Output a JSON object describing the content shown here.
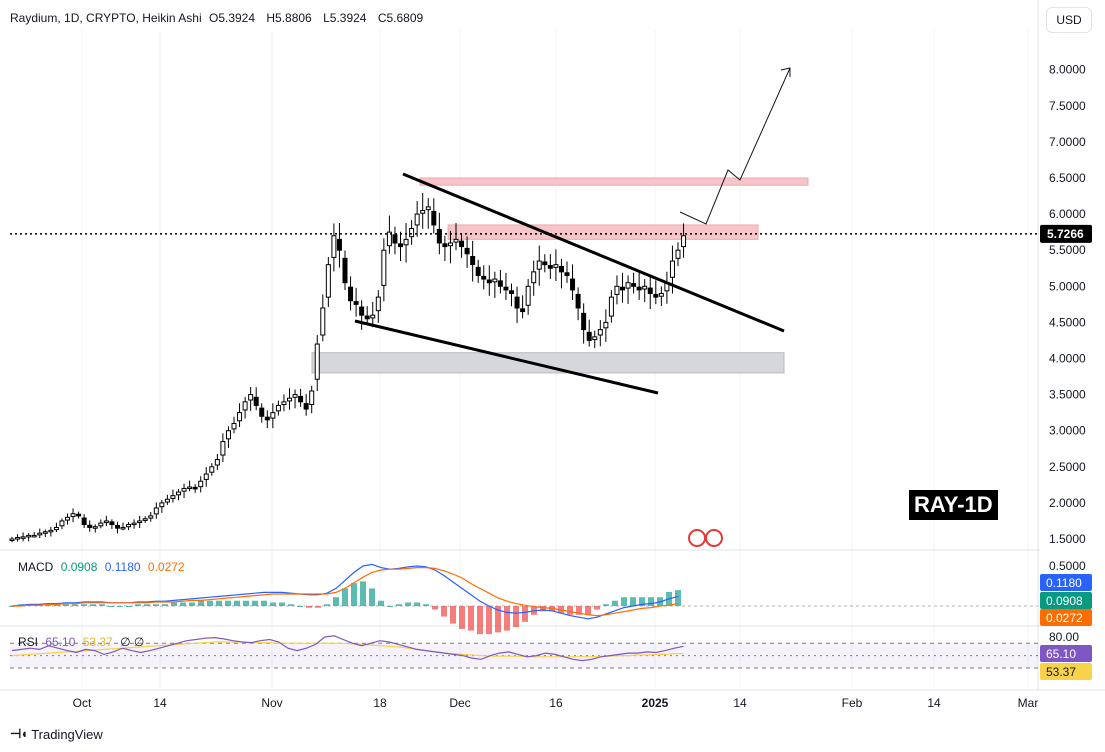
{
  "header": {
    "symbol": "Raydium, 1D, CRYPTO, Heikin Ashi",
    "o_label": "O",
    "o_value": "5.3924",
    "h_label": "H",
    "h_value": "5.8806",
    "l_label": "L",
    "l_value": "5.3924",
    "c_label": "C",
    "c_value": "5.6809",
    "currency_button": "USD"
  },
  "watermark_label": "RAY-1D",
  "branding": "TradingView",
  "colors": {
    "up": "#000000",
    "down": "#000000",
    "macd_line": "#2962ff",
    "signal_line": "#ff6d00",
    "rsi_line": "#7e57c2",
    "rsi_ma": "#f7d24a",
    "resistance_zone": "#f6c5c9",
    "support_zone": "#d6d7da",
    "macd_hist_pos": "#26a69a",
    "macd_hist_neg": "#ef5350"
  },
  "chart_data": [
    {
      "type": "candlestick",
      "title": "Raydium, 1D, CRYPTO, Heikin Ashi",
      "x_axis_ticks": [
        "Oct",
        "14",
        "Nov",
        "18",
        "Dec",
        "16",
        "2025",
        "14",
        "Feb",
        "14",
        "Mar"
      ],
      "y_axis_ticks": [
        "1.5000",
        "2.0000",
        "2.5000",
        "3.0000",
        "3.5000",
        "4.0000",
        "4.5000",
        "5.0000",
        "5.5000",
        "6.0000",
        "6.5000",
        "7.0000",
        "7.5000",
        "8.0000"
      ],
      "ylim": [
        1.3,
        8.5
      ],
      "current_price_label": "5.7266",
      "current_price": 5.7266,
      "closes": [
        1.5,
        1.52,
        1.53,
        1.55,
        1.55,
        1.58,
        1.6,
        1.62,
        1.66,
        1.75,
        1.8,
        1.85,
        1.82,
        1.7,
        1.66,
        1.67,
        1.72,
        1.75,
        1.7,
        1.65,
        1.66,
        1.7,
        1.72,
        1.75,
        1.78,
        1.82,
        1.93,
        2.0,
        2.05,
        2.1,
        2.15,
        2.2,
        2.22,
        2.2,
        2.3,
        2.4,
        2.5,
        2.6,
        2.85,
        3.0,
        3.1,
        3.25,
        3.4,
        3.5,
        3.35,
        3.2,
        3.15,
        3.25,
        3.35,
        3.4,
        3.45,
        3.5,
        3.4,
        3.3,
        3.55,
        4.2,
        4.7,
        5.3,
        5.7,
        5.5,
        5.05,
        4.8,
        4.75,
        4.6,
        4.55,
        4.6,
        4.85,
        5.5,
        5.75,
        5.6,
        5.55,
        5.65,
        5.8,
        6.0,
        6.05,
        6.1,
        5.85,
        5.6,
        5.55,
        5.6,
        5.65,
        5.55,
        5.45,
        5.3,
        5.15,
        5.1,
        5.05,
        5.1,
        5.0,
        4.95,
        4.9,
        4.7,
        4.65,
        5.0,
        5.2,
        5.35,
        5.3,
        5.25,
        5.3,
        5.2,
        5.15,
        4.95,
        4.7,
        4.4,
        4.25,
        4.3,
        4.4,
        4.5,
        4.85,
        5.0,
        4.95,
        5.05,
        5.0,
        4.95,
        5.0,
        4.9,
        4.85,
        4.9,
        5.05,
        5.35,
        5.5,
        5.7
      ],
      "annotations": {
        "resistance_zones": [
          [
            6.4,
            6.5
          ],
          [
            5.65,
            5.85
          ]
        ],
        "support_zone": [
          3.8,
          4.08
        ],
        "falling_wedge_upper": [
          [
            6.58,
            4.4
          ]
        ],
        "falling_wedge_lower": [
          [
            4.5,
            3.55
          ]
        ],
        "projection_path": [
          5.85,
          6.6,
          8.05
        ]
      }
    },
    {
      "type": "line",
      "title": "MACD",
      "values_labels": [
        "0.0908",
        "0.1180",
        "0.0272"
      ],
      "y_axis_ticks": [
        "0.5000"
      ],
      "series": [
        {
          "name": "MACD",
          "color": "#2962ff"
        },
        {
          "name": "Signal",
          "color": "#ff6d00"
        },
        {
          "name": "Histogram"
        }
      ],
      "macd": [
        0.0,
        0.01,
        0.02,
        0.02,
        0.03,
        0.03,
        0.04,
        0.04,
        0.05,
        0.05,
        0.05,
        0.04,
        0.04,
        0.04,
        0.05,
        0.05,
        0.06,
        0.06,
        0.07,
        0.08,
        0.09,
        0.1,
        0.11,
        0.12,
        0.13,
        0.14,
        0.15,
        0.16,
        0.17,
        0.17,
        0.17,
        0.16,
        0.15,
        0.14,
        0.14,
        0.16,
        0.22,
        0.32,
        0.42,
        0.5,
        0.52,
        0.48,
        0.46,
        0.47,
        0.49,
        0.5,
        0.49,
        0.45,
        0.38,
        0.3,
        0.22,
        0.14,
        0.06,
        0.0,
        -0.05,
        -0.08,
        -0.09,
        -0.08,
        -0.06,
        -0.05,
        -0.06,
        -0.09,
        -0.12,
        -0.14,
        -0.16,
        -0.14,
        -0.1,
        -0.06,
        -0.02,
        0.0,
        0.02,
        0.03,
        0.05,
        0.09,
        0.12
      ],
      "signal": [
        0.0,
        0.0,
        0.01,
        0.01,
        0.02,
        0.02,
        0.03,
        0.03,
        0.04,
        0.04,
        0.04,
        0.04,
        0.04,
        0.04,
        0.04,
        0.04,
        0.05,
        0.05,
        0.05,
        0.06,
        0.07,
        0.07,
        0.08,
        0.09,
        0.1,
        0.11,
        0.12,
        0.13,
        0.14,
        0.15,
        0.15,
        0.15,
        0.15,
        0.15,
        0.15,
        0.15,
        0.17,
        0.22,
        0.29,
        0.36,
        0.42,
        0.45,
        0.46,
        0.46,
        0.47,
        0.48,
        0.48,
        0.47,
        0.44,
        0.4,
        0.35,
        0.28,
        0.22,
        0.16,
        0.1,
        0.06,
        0.03,
        0.01,
        -0.01,
        -0.02,
        -0.03,
        -0.05,
        -0.07,
        -0.09,
        -0.11,
        -0.12,
        -0.11,
        -0.09,
        -0.07,
        -0.05,
        -0.03,
        -0.02,
        0.0,
        0.01,
        0.03
      ]
    },
    {
      "type": "line",
      "title": "RSI",
      "values_labels": [
        "65.10",
        "53.37"
      ],
      "y_axis_ticks": [
        "80.00"
      ],
      "levels": [
        70,
        30
      ],
      "rsi": [
        58,
        60,
        62,
        60,
        66,
        62,
        58,
        55,
        60,
        58,
        52,
        56,
        62,
        58,
        55,
        58,
        62,
        66,
        70,
        74,
        76,
        78,
        79,
        77,
        74,
        72,
        71,
        74,
        76,
        72,
        62,
        58,
        62,
        68,
        80,
        82,
        76,
        70,
        66,
        70,
        74,
        72,
        68,
        64,
        60,
        58,
        56,
        54,
        52,
        50,
        46,
        44,
        50,
        54,
        56,
        52,
        48,
        50,
        54,
        52,
        48,
        44,
        42,
        44,
        48,
        50,
        52,
        54,
        54,
        56,
        55,
        58,
        62,
        65
      ],
      "rsi_ma": [
        50,
        51,
        52,
        53,
        54,
        55,
        56,
        57,
        58,
        59,
        60,
        61,
        62,
        63,
        64,
        65,
        66,
        67,
        68,
        69,
        70,
        71,
        72,
        72,
        72,
        72,
        71,
        71,
        71,
        70,
        70,
        70,
        70,
        70,
        70,
        70,
        70,
        69,
        68,
        67,
        66,
        65,
        64,
        62,
        60,
        58,
        56,
        54,
        53,
        52,
        51,
        50,
        49,
        49,
        49,
        49,
        48,
        48,
        48,
        48,
        48,
        48,
        48,
        48,
        49,
        49,
        50,
        50,
        51,
        51,
        52,
        52,
        53,
        53
      ]
    }
  ]
}
